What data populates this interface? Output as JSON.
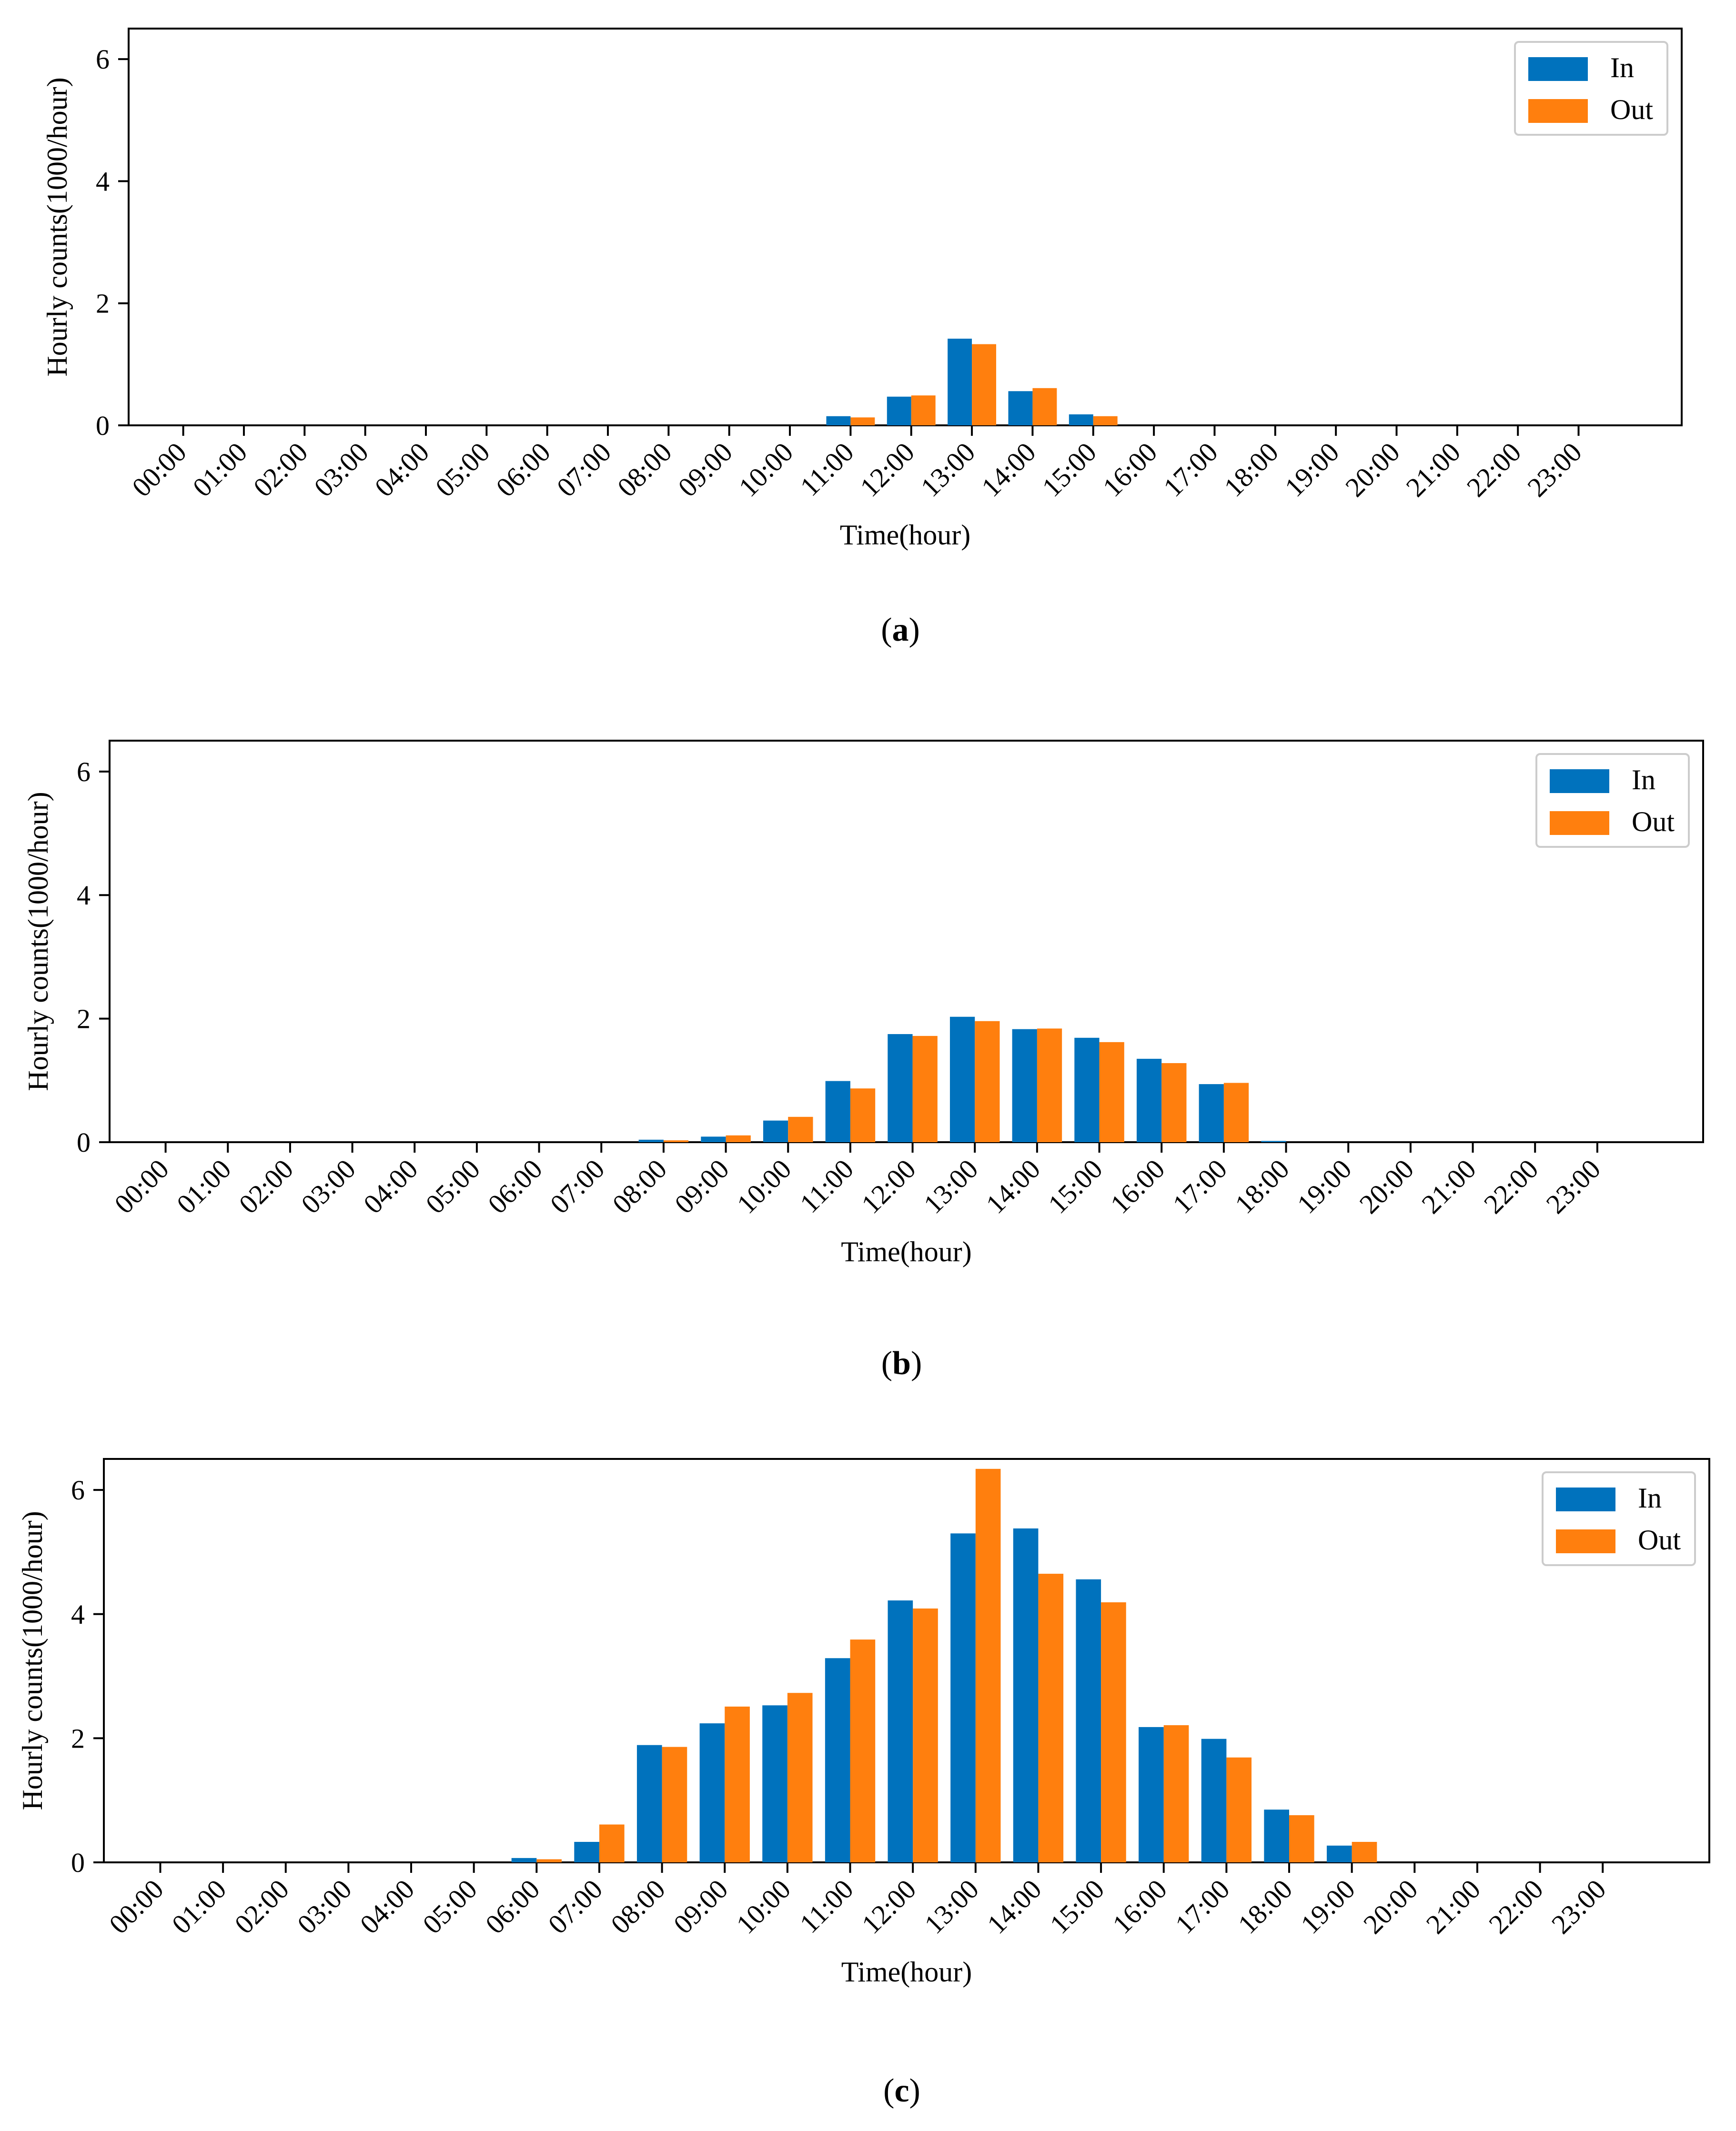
{
  "chart_data": [
    {
      "type": "bar",
      "panel_label": "a",
      "title": "",
      "xlabel": "Time(hour)",
      "ylabel": "Hourly counts(1000/hour)",
      "ylim": [
        0,
        6.5
      ],
      "yticks": [
        0,
        2,
        4,
        6
      ],
      "legend_position": "top-right",
      "grid": false,
      "categories": [
        "00:00",
        "01:00",
        "02:00",
        "03:00",
        "04:00",
        "05:00",
        "06:00",
        "07:00",
        "08:00",
        "09:00",
        "10:00",
        "11:00",
        "12:00",
        "13:00",
        "14:00",
        "15:00",
        "16:00",
        "17:00",
        "18:00",
        "19:00",
        "20:00",
        "21:00",
        "22:00",
        "23:00"
      ],
      "series": [
        {
          "name": "In",
          "color": "#0072BD",
          "values": [
            0,
            0,
            0,
            0,
            0,
            0,
            0,
            0,
            0,
            0,
            0,
            0.15,
            0.47,
            1.42,
            0.56,
            0.18,
            0,
            0,
            0,
            0,
            0,
            0,
            0,
            0
          ]
        },
        {
          "name": "Out",
          "color": "#FF7F0E",
          "values": [
            0,
            0,
            0,
            0,
            0,
            0,
            0,
            0,
            0,
            0,
            0,
            0.13,
            0.49,
            1.33,
            0.61,
            0.15,
            0,
            0,
            0,
            0,
            0,
            0,
            0,
            0
          ]
        }
      ]
    },
    {
      "type": "bar",
      "panel_label": "b",
      "title": "",
      "xlabel": "Time(hour)",
      "ylabel": "Hourly counts(1000/hour)",
      "ylim": [
        0,
        6.5
      ],
      "yticks": [
        0,
        2,
        4,
        6
      ],
      "legend_position": "top-right",
      "grid": false,
      "categories": [
        "00:00",
        "01:00",
        "02:00",
        "03:00",
        "04:00",
        "05:00",
        "06:00",
        "07:00",
        "08:00",
        "09:00",
        "10:00",
        "11:00",
        "12:00",
        "13:00",
        "14:00",
        "15:00",
        "16:00",
        "17:00",
        "18:00",
        "19:00",
        "20:00",
        "21:00",
        "22:00",
        "23:00"
      ],
      "series": [
        {
          "name": "In",
          "color": "#0072BD",
          "values": [
            0,
            0,
            0,
            0,
            0,
            0,
            0,
            0,
            0.04,
            0.09,
            0.35,
            0.99,
            1.75,
            2.03,
            1.83,
            1.69,
            1.35,
            0.94,
            0.02,
            0,
            0,
            0,
            0,
            0
          ]
        },
        {
          "name": "Out",
          "color": "#FF7F0E",
          "values": [
            0,
            0,
            0,
            0,
            0,
            0,
            0,
            0,
            0.03,
            0.11,
            0.41,
            0.87,
            1.72,
            1.96,
            1.84,
            1.62,
            1.28,
            0.96,
            0,
            0,
            0,
            0,
            0,
            0
          ]
        }
      ]
    },
    {
      "type": "bar",
      "panel_label": "c",
      "title": "",
      "xlabel": "Time(hour)",
      "ylabel": "Hourly counts(1000/hour)",
      "ylim": [
        0,
        6.5
      ],
      "yticks": [
        0,
        2,
        4,
        6
      ],
      "legend_position": "top-right",
      "grid": false,
      "categories": [
        "00:00",
        "01:00",
        "02:00",
        "03:00",
        "04:00",
        "05:00",
        "06:00",
        "07:00",
        "08:00",
        "09:00",
        "10:00",
        "11:00",
        "12:00",
        "13:00",
        "14:00",
        "15:00",
        "16:00",
        "17:00",
        "18:00",
        "19:00",
        "20:00",
        "21:00",
        "22:00",
        "23:00"
      ],
      "series": [
        {
          "name": "In",
          "color": "#0072BD",
          "values": [
            0,
            0,
            0,
            0,
            0,
            0,
            0.07,
            0.33,
            1.89,
            2.24,
            2.53,
            3.29,
            4.22,
            5.3,
            5.38,
            4.56,
            2.18,
            1.99,
            0.85,
            0.27,
            0,
            0,
            0,
            0
          ]
        },
        {
          "name": "Out",
          "color": "#FF7F0E",
          "values": [
            0,
            0,
            0,
            0,
            0,
            0,
            0.05,
            0.61,
            1.86,
            2.51,
            2.73,
            3.59,
            4.09,
            6.34,
            4.65,
            4.19,
            2.21,
            1.69,
            0.76,
            0.33,
            0,
            0,
            0,
            0
          ]
        }
      ]
    }
  ]
}
